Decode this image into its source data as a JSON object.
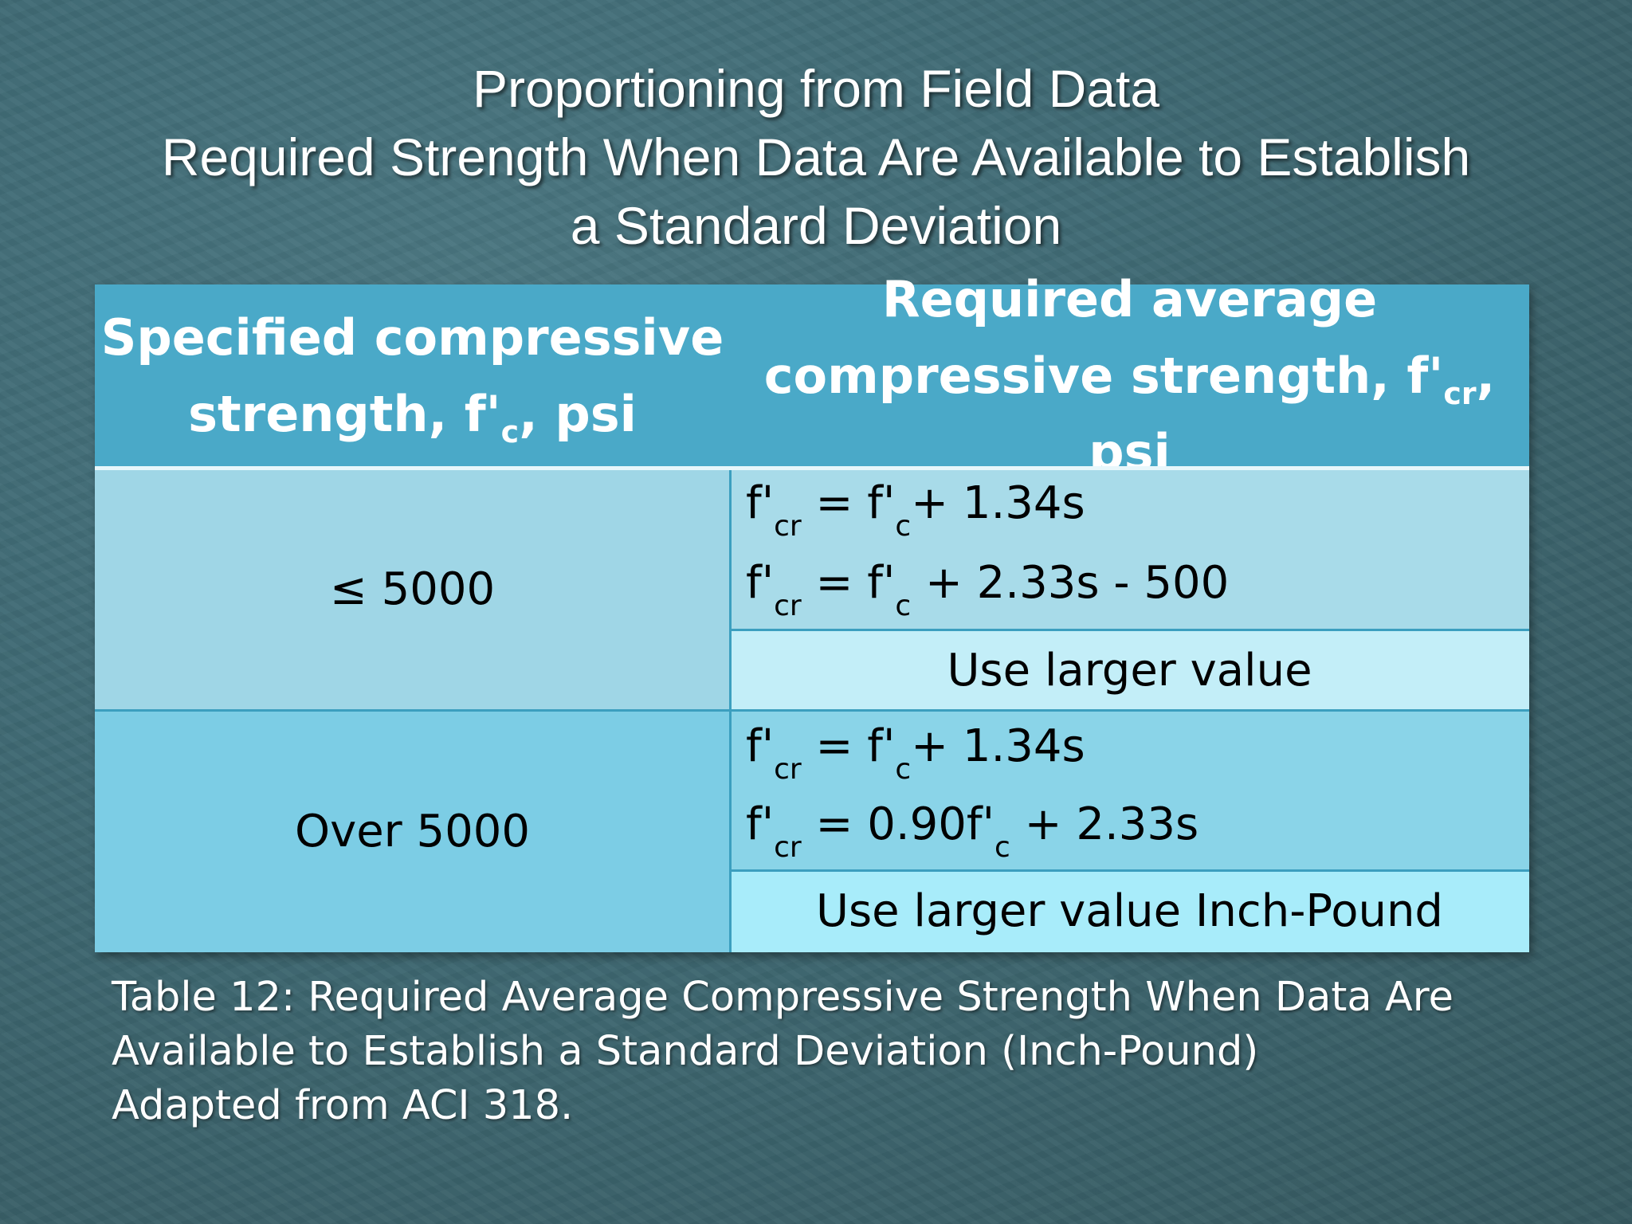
{
  "slide": {
    "title_lines": [
      "Proportioning from Field Data",
      "Required Strength When Data Are Available to Establish",
      "a Standard Deviation"
    ]
  },
  "table": {
    "headers": {
      "col1_line1": "Specified compressive",
      "col1_line2_pre": "strength,  f'",
      "col1_line2_sub": "c",
      "col1_line2_post": ", psi",
      "col2_line1": "Required average",
      "col2_line2_pre": "compressive strength, f'",
      "col2_line2_sub": "cr",
      "col2_line2_post": ", psi"
    },
    "rows": [
      {
        "specified": "≤ 5000",
        "formula1": {
          "a": "f'",
          "a_sub": "cr",
          "b": " =  f'",
          "b_sub": "c",
          "c": "+ 1.34s"
        },
        "formula2": {
          "a": "f'",
          "a_sub": "cr",
          "b": " = f'",
          "b_sub": "c",
          "c": " + 2.33s - 500"
        },
        "note": "Use larger value"
      },
      {
        "specified": "Over 5000",
        "formula1": {
          "a": "f'",
          "a_sub": "cr",
          "b": " =  f'",
          "b_sub": "c",
          "c": "+ 1.34s"
        },
        "formula2": {
          "a": "f'",
          "a_sub": "cr",
          "b": " = 0.90f'",
          "b_sub": "c",
          "c": " + 2.33s"
        },
        "note": "Use larger value Inch-Pound"
      }
    ]
  },
  "caption": {
    "lines": [
      "Table 12: Required Average Compressive Strength When Data Are",
      "Available to Establish a Standard Deviation (Inch-Pound)",
      "Adapted from ACI 318."
    ]
  }
}
